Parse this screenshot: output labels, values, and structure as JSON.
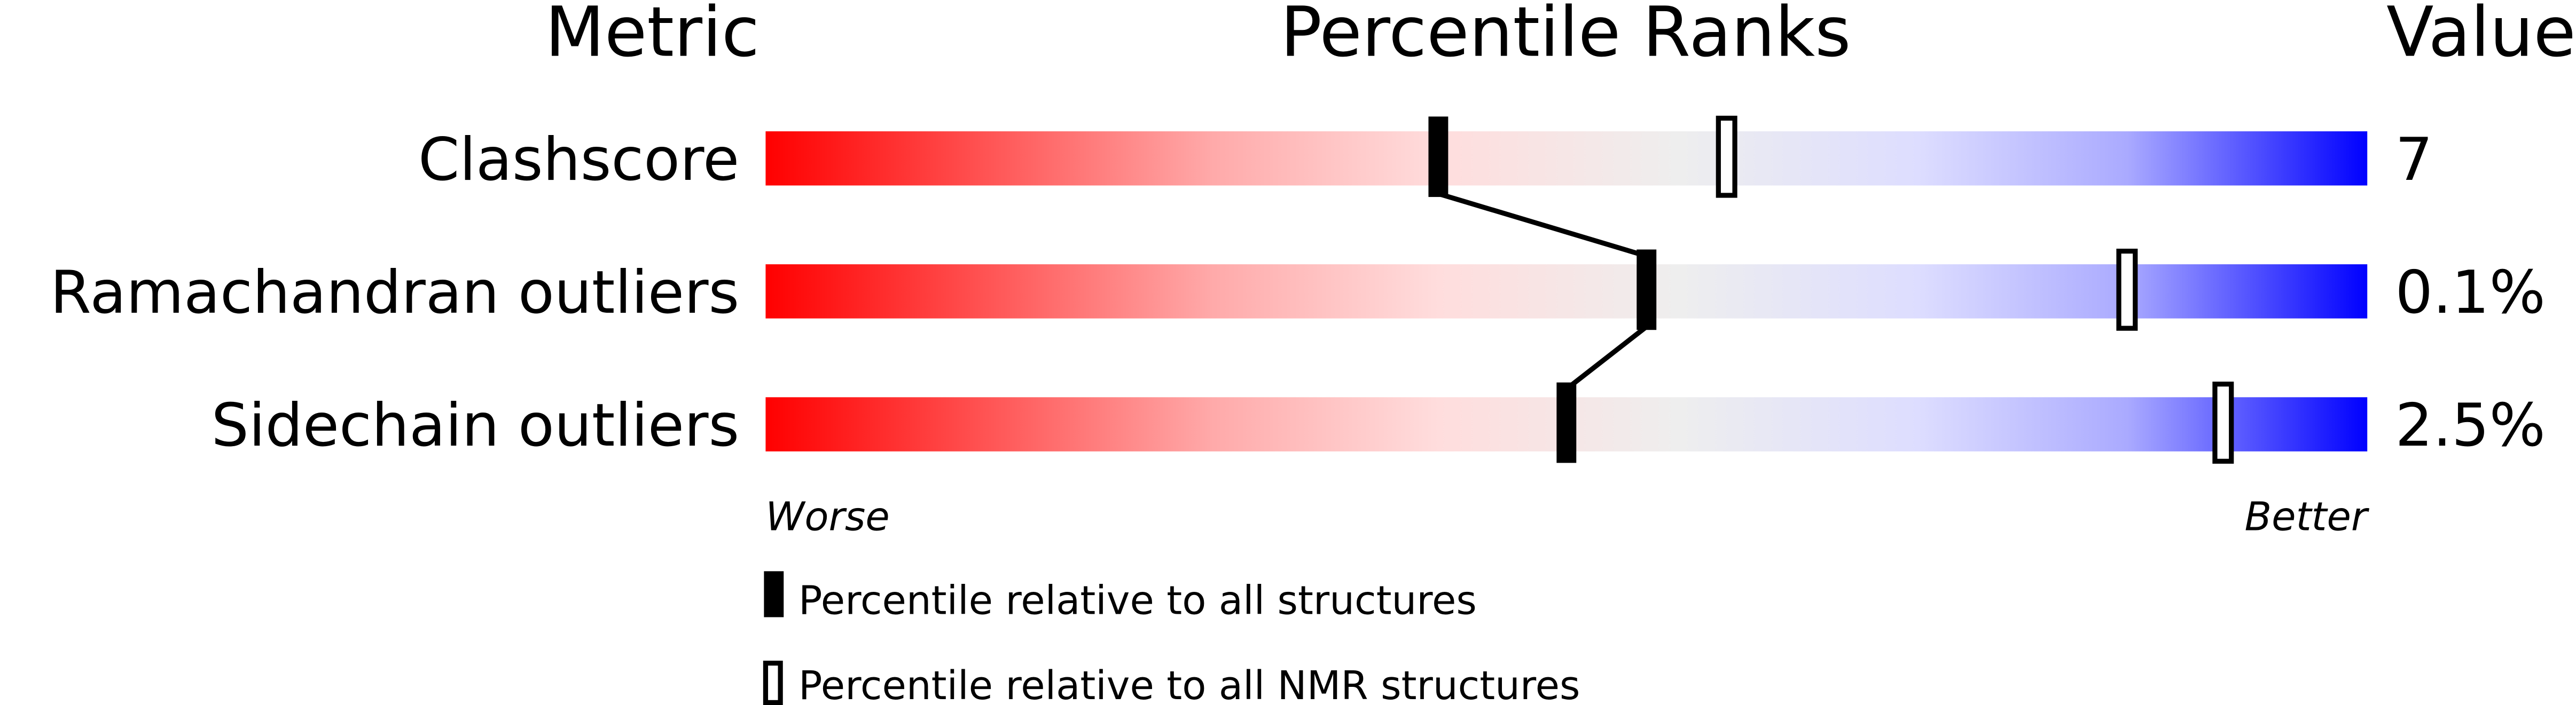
{
  "chart_data": {
    "type": "bar",
    "headers": {
      "metric": "Metric",
      "ranks": "Percentile Ranks",
      "value": "Value"
    },
    "xlim": [
      0,
      100
    ],
    "rows": [
      {
        "metric": "Clashscore",
        "value": "7",
        "percentile_all": 42,
        "percentile_nmr": 60
      },
      {
        "metric": "Ramachandran outliers",
        "value": "0.1%",
        "percentile_all": 55,
        "percentile_nmr": 85
      },
      {
        "metric": "Sidechain outliers",
        "value": "2.5%",
        "percentile_all": 50,
        "percentile_nmr": 91
      }
    ],
    "axis_labels": {
      "worse": "Worse",
      "better": "Better"
    },
    "legend": [
      {
        "marker": "filled",
        "label": "Percentile relative to all structures"
      },
      {
        "marker": "open",
        "label": "Percentile relative to all NMR structures"
      }
    ],
    "colors": {
      "worse": "#ff0000",
      "middle": "#eeeeee",
      "better": "#0000ff"
    }
  }
}
